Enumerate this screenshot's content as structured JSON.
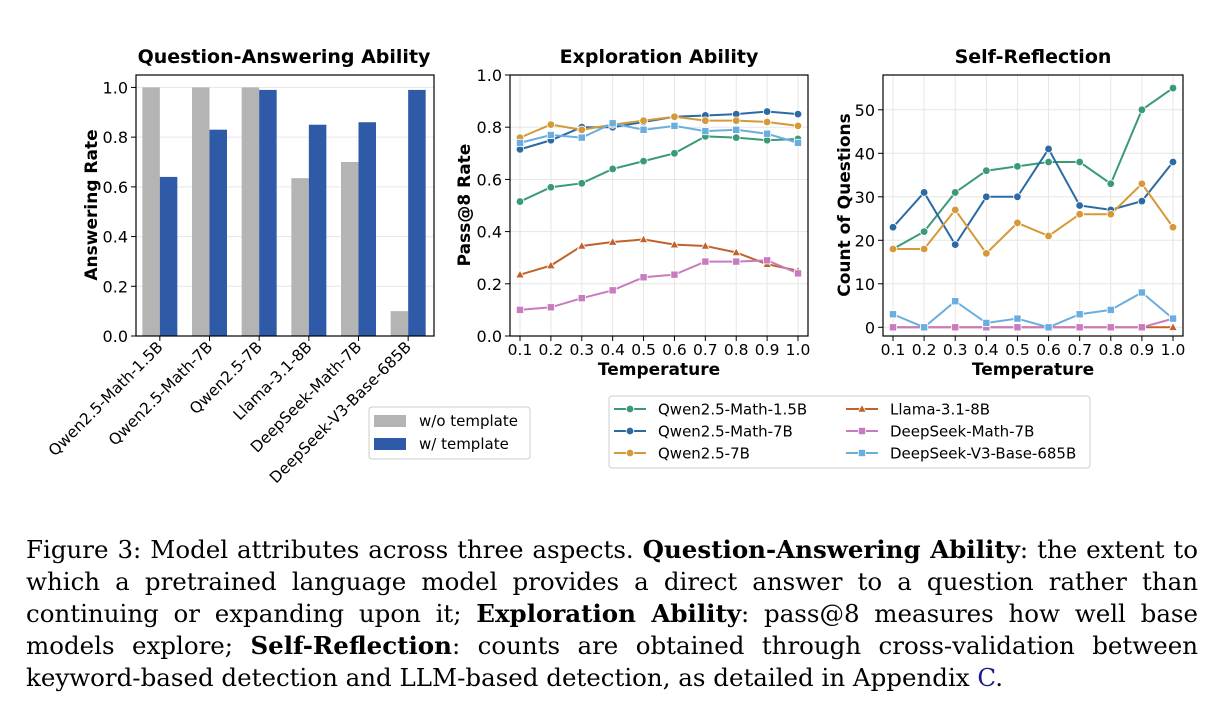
{
  "chart_data": [
    {
      "type": "bar",
      "title": "Question-Answering Ability",
      "xlabel": "",
      "ylabel": "Answering Rate",
      "ylim": [
        0,
        1.05
      ],
      "yticks": [
        0.0,
        0.2,
        0.4,
        0.6,
        0.8,
        1.0
      ],
      "ytick_labels": [
        "0.0",
        "0.2",
        "0.4",
        "0.6",
        "0.8",
        "1.0"
      ],
      "categories": [
        "Qwen2.5-Math-1.5B",
        "Qwen2.5-Math-7B",
        "Qwen2.5-7B",
        "Llama-3.1-8B",
        "DeepSeek-Math-7B",
        "DeepSeek-V3-Base-685B"
      ],
      "series": [
        {
          "name": "w/o template",
          "color": "#b4b4b4",
          "values": [
            1.0,
            1.0,
            1.0,
            0.635,
            0.7,
            0.1
          ]
        },
        {
          "name": "w/ template",
          "color": "#2e5aa8",
          "values": [
            0.64,
            0.83,
            0.99,
            0.85,
            0.86,
            0.99
          ]
        }
      ],
      "legend": "bottom-right"
    },
    {
      "type": "line",
      "title": "Exploration Ability",
      "xlabel": "Temperature",
      "ylabel": "Pass@8 Rate",
      "ylim": [
        0,
        1.0
      ],
      "xlim": [
        0.1,
        1.0
      ],
      "x": [
        0.1,
        0.2,
        0.3,
        0.4,
        0.5,
        0.6,
        0.7,
        0.8,
        0.9,
        1.0
      ],
      "xtick_labels": [
        "0.1",
        "0.2",
        "0.3",
        "0.4",
        "0.5",
        "0.6",
        "0.7",
        "0.8",
        "0.9",
        "1.0"
      ],
      "yticks": [
        0.0,
        0.2,
        0.4,
        0.6,
        0.8,
        1.0
      ],
      "ytick_labels": [
        "0.0",
        "0.2",
        "0.4",
        "0.6",
        "0.8",
        "1.0"
      ],
      "series": [
        {
          "name": "Qwen2.5-Math-1.5B",
          "color": "#3a9a78",
          "marker": "circle",
          "values": [
            0.515,
            0.57,
            0.585,
            0.64,
            0.67,
            0.7,
            0.765,
            0.76,
            0.75,
            0.755
          ]
        },
        {
          "name": "Qwen2.5-Math-7B",
          "color": "#2b6aa3",
          "marker": "circle",
          "values": [
            0.715,
            0.75,
            0.8,
            0.8,
            0.82,
            0.84,
            0.845,
            0.85,
            0.86,
            0.85
          ]
        },
        {
          "name": "Qwen2.5-7B",
          "color": "#d49a38",
          "marker": "circle",
          "values": [
            0.76,
            0.81,
            0.79,
            0.81,
            0.825,
            0.84,
            0.825,
            0.825,
            0.82,
            0.805
          ]
        },
        {
          "name": "Llama-3.1-8B",
          "color": "#c0622a",
          "marker": "triangle",
          "values": [
            0.235,
            0.27,
            0.345,
            0.36,
            0.37,
            0.35,
            0.345,
            0.32,
            0.275,
            0.25
          ]
        },
        {
          "name": "DeepSeek-Math-7B",
          "color": "#c97bbf",
          "marker": "square",
          "values": [
            0.1,
            0.11,
            0.145,
            0.175,
            0.225,
            0.235,
            0.285,
            0.285,
            0.29,
            0.24
          ]
        },
        {
          "name": "DeepSeek-V3-Base-685B",
          "color": "#6aaedf",
          "marker": "square",
          "values": [
            0.74,
            0.77,
            0.76,
            0.815,
            0.79,
            0.805,
            0.785,
            0.79,
            0.775,
            0.74
          ]
        }
      ]
    },
    {
      "type": "line",
      "title": "Self-Reflection",
      "xlabel": "Temperature",
      "ylabel": "Count of Questions",
      "ylim": [
        -2,
        58
      ],
      "xlim": [
        0.1,
        1.0
      ],
      "x": [
        0.1,
        0.2,
        0.3,
        0.4,
        0.5,
        0.6,
        0.7,
        0.8,
        0.9,
        1.0
      ],
      "xtick_labels": [
        "0.1",
        "0.2",
        "0.3",
        "0.4",
        "0.5",
        "0.6",
        "0.7",
        "0.8",
        "0.9",
        "1.0"
      ],
      "yticks": [
        0,
        10,
        20,
        30,
        40,
        50
      ],
      "ytick_labels": [
        "0",
        "10",
        "20",
        "30",
        "40",
        "50"
      ],
      "series": [
        {
          "name": "Qwen2.5-Math-1.5B",
          "color": "#3a9a78",
          "marker": "circle",
          "values": [
            18,
            22,
            31,
            36,
            37,
            38,
            38,
            33,
            50,
            55
          ]
        },
        {
          "name": "Qwen2.5-Math-7B",
          "color": "#2b6aa3",
          "marker": "circle",
          "values": [
            23,
            31,
            19,
            30,
            30,
            41,
            28,
            27,
            29,
            38
          ]
        },
        {
          "name": "Qwen2.5-7B",
          "color": "#d49a38",
          "marker": "circle",
          "values": [
            18,
            18,
            27,
            17,
            24,
            21,
            26,
            26,
            33,
            23
          ]
        },
        {
          "name": "Llama-3.1-8B",
          "color": "#c0622a",
          "marker": "triangle",
          "values": [
            0,
            0,
            0,
            0,
            0,
            0,
            0,
            0,
            0,
            0
          ]
        },
        {
          "name": "DeepSeek-Math-7B",
          "color": "#c97bbf",
          "marker": "square",
          "values": [
            0,
            0,
            0,
            0,
            0,
            0,
            0,
            0,
            0,
            2
          ]
        },
        {
          "name": "DeepSeek-V3-Base-685B",
          "color": "#6aaedf",
          "marker": "square",
          "values": [
            3,
            0,
            6,
            1,
            2,
            0,
            3,
            4,
            8,
            2
          ]
        }
      ]
    }
  ],
  "caption": {
    "label": "Figure 3: Model attributes across three aspects.",
    "term1": "Question-Answering Ability",
    "text1": ": the extent to which a pretrained language model provides a direct answer to a question rather than continuing or expanding upon it;",
    "term2": "Exploration Ability",
    "text2": ": pass@8 measures how well base models explore;",
    "term3": "Self-Reflection",
    "text3": ": counts are obtained through cross-validation between keyword-based detection and LLM-based detection, as detailed in Appendix",
    "ref": "C",
    "end": "."
  }
}
